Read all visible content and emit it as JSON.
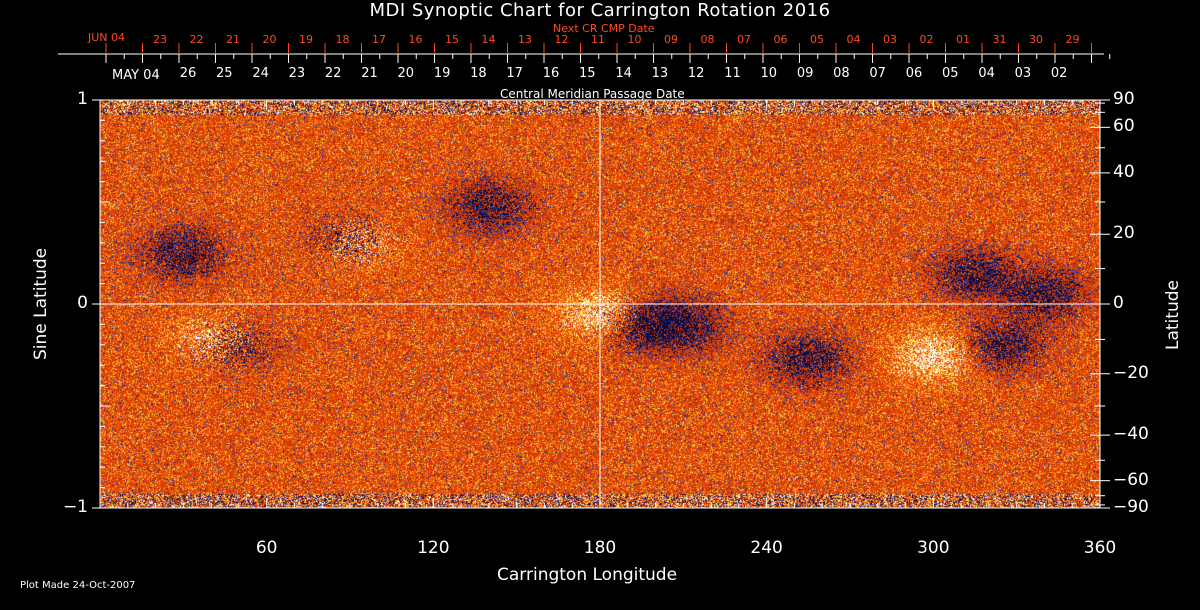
{
  "title": "MDI Synoptic Chart for Carrington Rotation 2016",
  "footer": "Plot Made 24-Oct-2007",
  "colors": {
    "background": "#000000",
    "map_base": "#e8400a",
    "positive_field": "#ffffff",
    "negative_field": "#0a0a40",
    "next_cr_axis": "#ff4a1a",
    "axis": "#ffffff"
  },
  "chart_data": {
    "type": "heatmap",
    "title": "MDI Synoptic Chart for Carrington Rotation 2016",
    "xlabel": "Carrington Longitude",
    "ylabel": "Sine Latitude",
    "y2label": "Latitude",
    "xlim": [
      0,
      360
    ],
    "ylim": [
      -1,
      1
    ],
    "x_ticks": [
      "60",
      "120",
      "180",
      "240",
      "300",
      "360"
    ],
    "y_ticks": [
      "1",
      "0",
      "−1"
    ],
    "y2_ticks": [
      "90",
      "60",
      "40",
      "20",
      "0",
      "−20",
      "−40",
      "−60",
      "−90"
    ],
    "grid_lines": {
      "x": 180,
      "y": 0
    },
    "top_axis": {
      "label": "Central Meridian Passage Date",
      "start_label": "MAY 04",
      "dates": [
        "26",
        "25",
        "24",
        "23",
        "22",
        "21",
        "20",
        "19",
        "18",
        "17",
        "16",
        "15",
        "14",
        "13",
        "12",
        "11",
        "10",
        "09",
        "08",
        "07",
        "06",
        "05",
        "04",
        "03",
        "02"
      ]
    },
    "next_cr_axis": {
      "label": "Next CR CMP Date",
      "start_label": "JUN 04",
      "dates": [
        "23",
        "22",
        "21",
        "20",
        "19",
        "18",
        "17",
        "16",
        "15",
        "14",
        "13",
        "12",
        "11",
        "10",
        "09",
        "08",
        "07",
        "06",
        "05",
        "04",
        "03",
        "02",
        "01",
        "31",
        "30",
        "29"
      ]
    }
  }
}
